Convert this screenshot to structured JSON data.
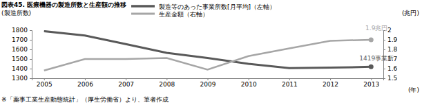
{
  "chart_data": {
    "type": "line",
    "title": "図表45. 医療機器の製造所数と生産額の推移",
    "y_label": "(製造所数)",
    "y2_label": "(兆円)",
    "x_label": "(年)",
    "note": "※「薬事工業生産動態統計」（厚生労働省）より、筆者作成",
    "categories": [
      "2005",
      "2006",
      "2007",
      "2008",
      "2009",
      "2010",
      "2011",
      "2012",
      "2013"
    ],
    "series": [
      {
        "name": "製造等のあった事業所数[月平均]（左軸）",
        "color": "#595959",
        "values": [
          1790,
          1745,
          1655,
          1565,
          1510,
          1450,
          1405,
          1410,
          1419
        ]
      },
      {
        "name": "生産金額（右軸）",
        "color": "#a6a6a6",
        "axis": "y2",
        "values": [
          1.58,
          1.7,
          1.7,
          1.71,
          1.59,
          1.73,
          1.81,
          1.89,
          1.9
        ]
      }
    ],
    "ylim": [
      1300,
      1800
    ],
    "yticks": [
      1300,
      1400,
      1500,
      1600,
      1700,
      1800
    ],
    "y2lim": [
      1.5,
      2
    ],
    "y2ticks": [
      1.5,
      1.6,
      1.7,
      1.8,
      1.9,
      2
    ],
    "annotations": [
      {
        "text": "1.9兆円",
        "x": "2013",
        "y": 1.9,
        "axis": "y2"
      },
      {
        "text": "1419事業所",
        "x": "2013",
        "y": 1419,
        "axis": "y"
      }
    ],
    "grid": false
  }
}
